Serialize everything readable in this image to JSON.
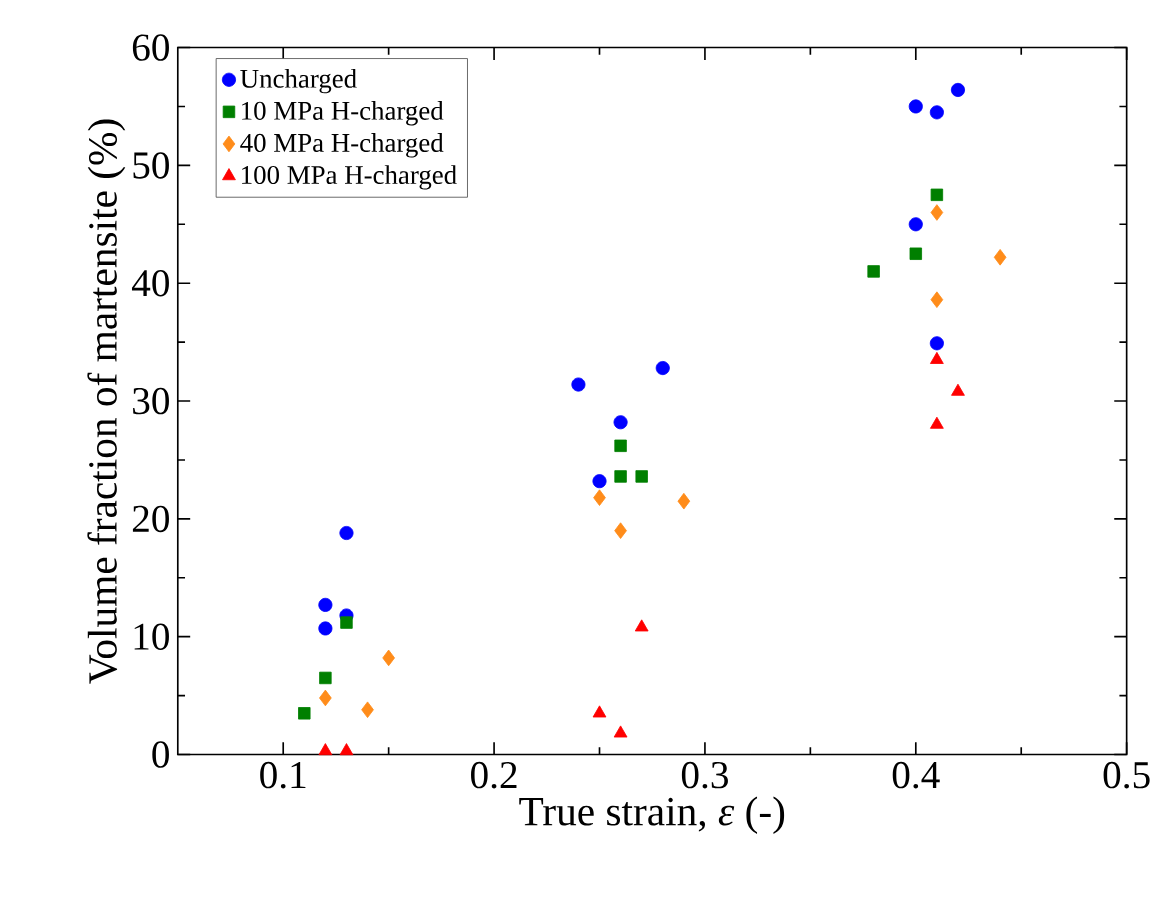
{
  "chart_data": {
    "type": "scatter",
    "xlabel": "True strain, *ε* (-)",
    "ylabel": "Volume fraction of martensite (%)",
    "xlim": [
      0.05,
      0.5
    ],
    "ylim": [
      0,
      60
    ],
    "xticks": [
      0.1,
      0.2,
      0.3,
      0.4,
      0.5
    ],
    "yticks": [
      0,
      10,
      20,
      30,
      40,
      50,
      60
    ],
    "legend": "top left",
    "series": [
      {
        "name": "Uncharged",
        "color": "#0000ff",
        "marker": "circle",
        "x": [
          0.12,
          0.12,
          0.13,
          0.13,
          0.24,
          0.25,
          0.26,
          0.28,
          0.4,
          0.41,
          0.42,
          0.4,
          0.41
        ],
        "values": [
          12.7,
          10.7,
          11.8,
          18.8,
          31.4,
          23.2,
          28.2,
          32.8,
          55.0,
          54.5,
          56.4,
          45.0,
          34.9
        ]
      },
      {
        "name": "10 MPa H-charged",
        "color": "#007f00",
        "marker": "square",
        "x": [
          0.11,
          0.12,
          0.13,
          0.26,
          0.26,
          0.27,
          0.38,
          0.4,
          0.41
        ],
        "values": [
          3.5,
          6.5,
          11.2,
          26.2,
          23.6,
          23.6,
          41.0,
          42.5,
          47.5
        ]
      },
      {
        "name": "40 MPa H-charged",
        "color": "#ff8c1a",
        "marker": "diamond",
        "x": [
          0.12,
          0.14,
          0.15,
          0.25,
          0.26,
          0.29,
          0.41,
          0.41,
          0.44
        ],
        "values": [
          4.8,
          3.8,
          8.2,
          21.8,
          19.0,
          21.5,
          46.0,
          38.6,
          42.2
        ]
      },
      {
        "name": "100 MPa H-charged",
        "color": "#ff0000",
        "marker": "triangle",
        "x": [
          0.12,
          0.13,
          0.25,
          0.26,
          0.27,
          0.41,
          0.42,
          0.41
        ],
        "values": [
          0.3,
          0.3,
          3.5,
          1.8,
          10.8,
          33.5,
          30.8,
          28.0
        ]
      }
    ]
  }
}
